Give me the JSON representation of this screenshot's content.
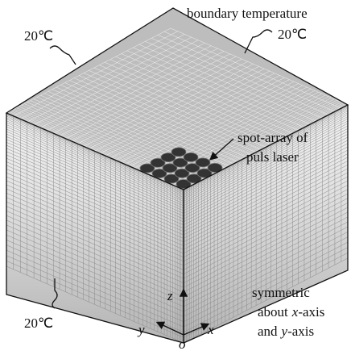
{
  "labels": {
    "boundary_title": "boundary temperature",
    "temp_top_left": "20℃",
    "temp_top_right": "20℃",
    "temp_bottom_left": "20℃"
  },
  "spot_label": {
    "line1": "spot-array of",
    "line2": "puls laser"
  },
  "symmetry_note": {
    "line1": "symmetric",
    "line2": {
      "pre": "about",
      "var": "x",
      "post": "-axis"
    },
    "line3": {
      "pre": "and",
      "var": "y",
      "post": "-axis"
    }
  },
  "axes": {
    "z": "z",
    "y": "y",
    "x": "x",
    "origin": "o"
  }
}
